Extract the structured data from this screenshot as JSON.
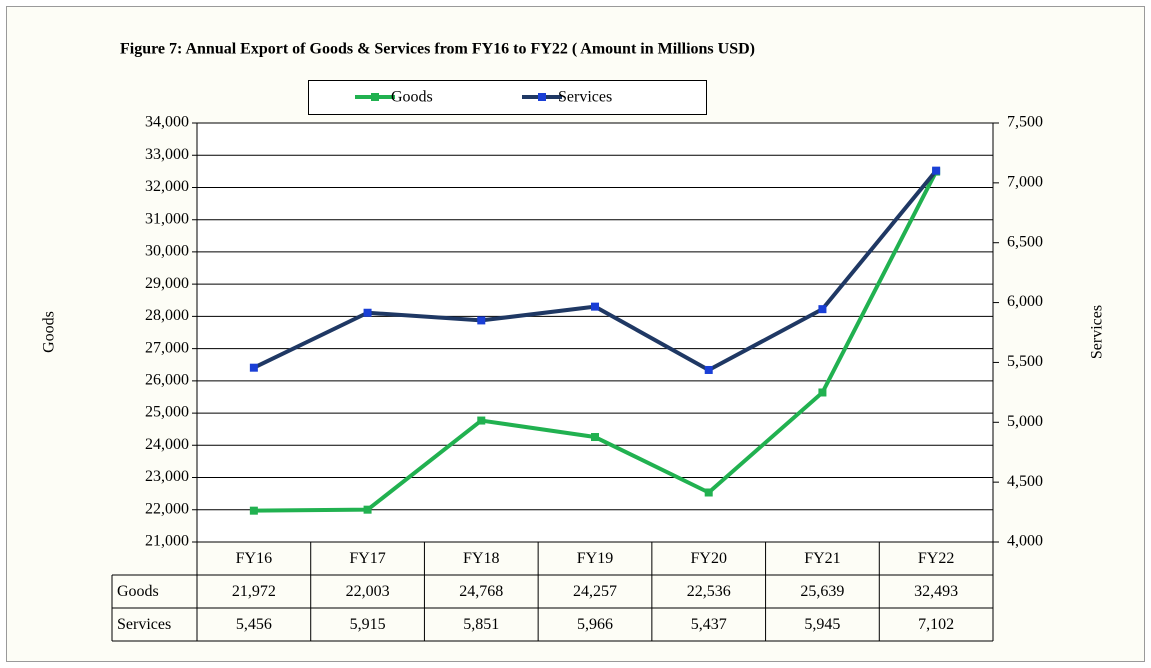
{
  "chart_data": {
    "type": "line",
    "title": "Figure 7: Annual Export of Goods & Services from FY16 to FY22 ( Amount in Millions USD)",
    "y_label": "Goods",
    "y2_label": "Services",
    "categories": [
      "FY16",
      "FY17",
      "FY18",
      "FY19",
      "FY20",
      "FY21",
      "FY22"
    ],
    "series": [
      {
        "name": "Goods",
        "color": "#21b150",
        "marker_color": "#21b150",
        "values": [
          21972,
          22003,
          24768,
          24257,
          22536,
          25639,
          32493
        ],
        "value_labels": [
          "21,972",
          "22,003",
          "24,768",
          "24,257",
          "22,536",
          "25,639",
          "32,493"
        ]
      },
      {
        "name": "Services",
        "color": "#1f3864",
        "marker_color": "#1a3fd6",
        "axis": "y2",
        "values": [
          5456,
          5915,
          5851,
          5966,
          5437,
          5945,
          7102
        ],
        "value_labels": [
          "5,456",
          "5,915",
          "5,851",
          "5,966",
          "5,437",
          "5,945",
          "7,102"
        ]
      }
    ],
    "ylim": [
      21000,
      34000
    ],
    "yticks": [
      {
        "value": 21000,
        "label": "21,000"
      },
      {
        "value": 22000,
        "label": "22,000"
      },
      {
        "value": 23000,
        "label": "23,000"
      },
      {
        "value": 24000,
        "label": "24,000"
      },
      {
        "value": 25000,
        "label": "25,000"
      },
      {
        "value": 26000,
        "label": "26,000"
      },
      {
        "value": 27000,
        "label": "27,000"
      },
      {
        "value": 28000,
        "label": "28,000"
      },
      {
        "value": 29000,
        "label": "29,000"
      },
      {
        "value": 30000,
        "label": "30,000"
      },
      {
        "value": 31000,
        "label": "31,000"
      },
      {
        "value": 32000,
        "label": "32,000"
      },
      {
        "value": 33000,
        "label": "33,000"
      },
      {
        "value": 34000,
        "label": "34,000"
      }
    ],
    "y2lim": [
      4000,
      7500
    ],
    "y2ticks": [
      {
        "value": 4000,
        "label": "4,000"
      },
      {
        "value": 4500,
        "label": "4,500"
      },
      {
        "value": 5000,
        "label": "5,000"
      },
      {
        "value": 5500,
        "label": "5,500"
      },
      {
        "value": 6000,
        "label": "6,000"
      },
      {
        "value": 6500,
        "label": "6,500"
      },
      {
        "value": 7000,
        "label": "7,000"
      },
      {
        "value": 7500,
        "label": "7,500"
      }
    ],
    "grid": true,
    "legend": "top"
  }
}
